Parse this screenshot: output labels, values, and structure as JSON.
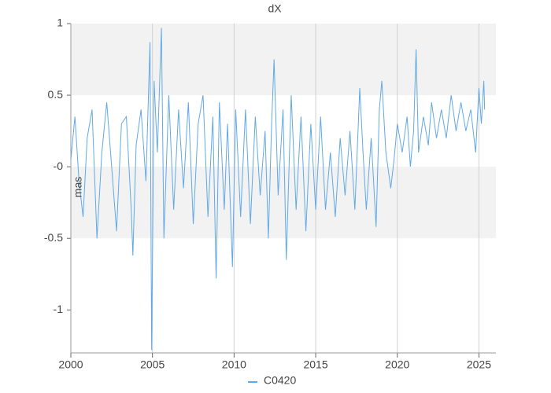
{
  "chart_data": {
    "type": "line",
    "title": "dX",
    "y_label": "mas",
    "x": [
      2000.0,
      2000.25,
      2000.5,
      2000.75,
      2001.0,
      2001.3,
      2001.6,
      2001.9,
      2002.2,
      2002.5,
      2002.8,
      2003.1,
      2003.4,
      2003.7,
      2003.8,
      2004.0,
      2004.3,
      2004.6,
      2004.85,
      2004.95,
      2005.1,
      2005.3,
      2005.55,
      2005.7,
      2006.0,
      2006.3,
      2006.6,
      2006.9,
      2007.2,
      2007.5,
      2007.8,
      2008.1,
      2008.4,
      2008.7,
      2008.9,
      2009.1,
      2009.4,
      2009.6,
      2009.9,
      2010.1,
      2010.4,
      2010.7,
      2011.0,
      2011.3,
      2011.6,
      2011.9,
      2012.1,
      2012.3,
      2012.45,
      2012.7,
      2013.0,
      2013.2,
      2013.5,
      2013.8,
      2014.1,
      2014.4,
      2014.7,
      2015.0,
      2015.3,
      2015.6,
      2015.9,
      2016.2,
      2016.5,
      2016.8,
      2017.1,
      2017.4,
      2017.7,
      2017.9,
      2018.1,
      2018.4,
      2018.7,
      2018.9,
      2019.05,
      2019.3,
      2019.6,
      2019.8,
      2020.0,
      2020.3,
      2020.6,
      2020.8,
      2021.0,
      2021.15,
      2021.3,
      2021.6,
      2021.9,
      2022.1,
      2022.4,
      2022.7,
      2023.0,
      2023.3,
      2023.6,
      2023.9,
      2024.2,
      2024.5,
      2024.8,
      2025.0,
      2025.15,
      2025.3,
      2025.35
    ],
    "series": [
      {
        "name": "C0420",
        "color": "#62a8e8",
        "values": [
          0.05,
          0.35,
          -0.1,
          -0.35,
          0.2,
          0.4,
          -0.5,
          0.1,
          0.45,
          0.0,
          -0.45,
          0.3,
          0.35,
          -0.3,
          -0.62,
          0.15,
          0.4,
          -0.1,
          0.87,
          -1.28,
          0.6,
          0.1,
          0.97,
          -0.5,
          0.5,
          -0.3,
          0.4,
          -0.15,
          0.45,
          -0.4,
          0.3,
          0.5,
          -0.35,
          0.35,
          -0.78,
          0.45,
          -0.3,
          0.3,
          -0.7,
          0.4,
          -0.35,
          0.4,
          -0.4,
          0.35,
          -0.2,
          0.25,
          -0.5,
          0.3,
          0.75,
          -0.2,
          0.4,
          -0.65,
          0.5,
          -0.3,
          0.35,
          -0.45,
          0.3,
          -0.3,
          0.35,
          -0.3,
          0.1,
          -0.35,
          0.2,
          -0.2,
          0.25,
          -0.3,
          0.55,
          0.1,
          -0.3,
          0.2,
          -0.42,
          0.4,
          0.6,
          0.1,
          -0.15,
          0.05,
          0.3,
          0.1,
          0.35,
          0.0,
          0.25,
          0.82,
          0.1,
          0.35,
          0.15,
          0.45,
          0.2,
          0.4,
          0.2,
          0.5,
          0.25,
          0.45,
          0.25,
          0.4,
          0.1,
          0.55,
          0.3,
          0.6,
          0.4
        ]
      }
    ],
    "xlim": [
      2000,
      2026.04
    ],
    "xticks": [
      2000,
      2005,
      2010,
      2015,
      2020,
      2025
    ],
    "ylim": [
      -1.3,
      1.0
    ],
    "yticks": [
      -1,
      -0.5,
      {
        "value": 0,
        "label": "-0"
      },
      0.5,
      1
    ],
    "grid": true,
    "legend": "bottom"
  }
}
